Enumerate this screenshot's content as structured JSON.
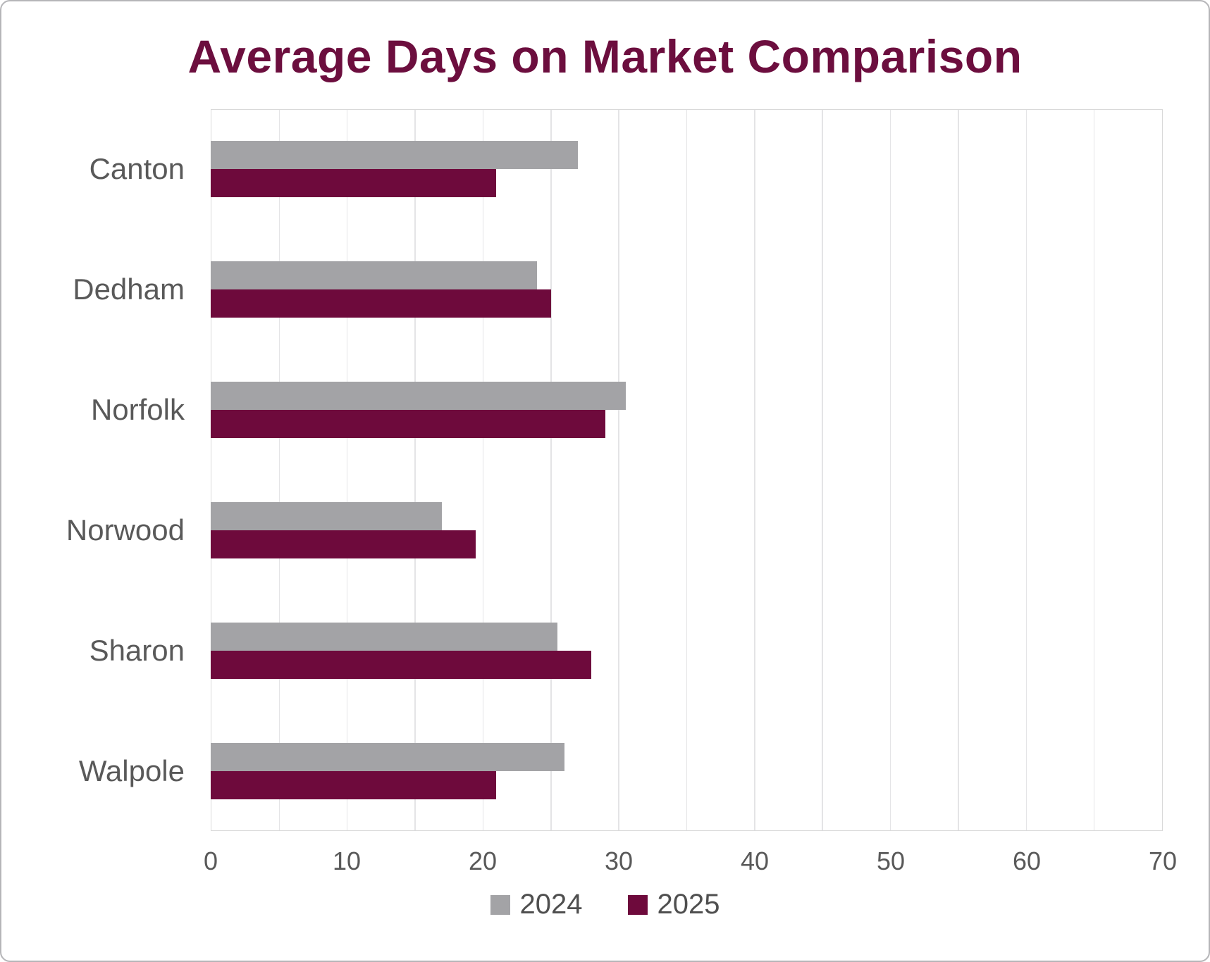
{
  "title": "Average Days on Market Comparison",
  "title_color": "#6C0E3E",
  "chart_data": {
    "type": "bar",
    "orientation": "horizontal",
    "title": "Average Days on Market Comparison",
    "categories": [
      "Canton",
      "Dedham",
      "Norfolk",
      "Norwood",
      "Sharon",
      "Walpole"
    ],
    "series": [
      {
        "name": "2024",
        "color": "#A3A3A6",
        "values": [
          27,
          24,
          30.5,
          17,
          25.5,
          26
        ]
      },
      {
        "name": "2025",
        "color": "#6E0A3C",
        "values": [
          21,
          25,
          29,
          19.5,
          28,
          21
        ]
      }
    ],
    "xlabel": "",
    "ylabel": "",
    "xlim": [
      0,
      70
    ],
    "tick_values": [
      0,
      10,
      20,
      30,
      40,
      50,
      60,
      70
    ],
    "gridline_step": 5,
    "grid": true,
    "legend_position": "bottom",
    "gridline_color": "#e4e4e6",
    "axis_text_color": "#595959"
  }
}
